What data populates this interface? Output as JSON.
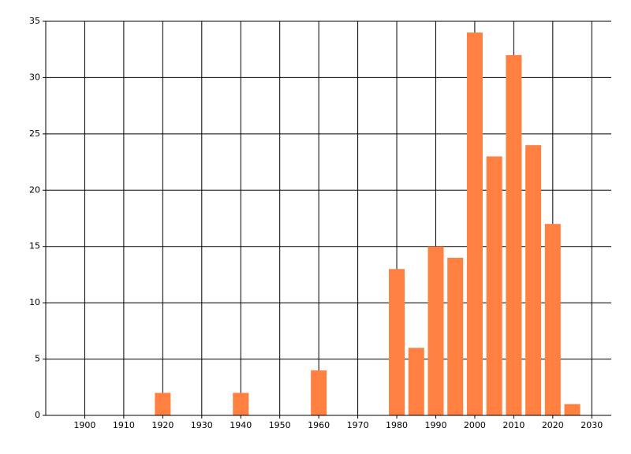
{
  "chart_data": {
    "type": "bar",
    "x": [
      1920,
      1940,
      1960,
      1980,
      1985,
      1990,
      1995,
      2000,
      2005,
      2010,
      2015,
      2020,
      2025
    ],
    "values": [
      2,
      2,
      4,
      13,
      6,
      15,
      14,
      34,
      23,
      32,
      24,
      17,
      1
    ],
    "color": "#ff8040",
    "xlim": [
      1890,
      2035
    ],
    "xticks": [
      1900,
      1910,
      1920,
      1930,
      1940,
      1950,
      1960,
      1970,
      1980,
      1990,
      2000,
      2010,
      2020,
      2030
    ],
    "ylim": [
      0,
      35
    ],
    "yticks": [
      0,
      5,
      10,
      15,
      20,
      25,
      30,
      35
    ],
    "grid": true
  }
}
